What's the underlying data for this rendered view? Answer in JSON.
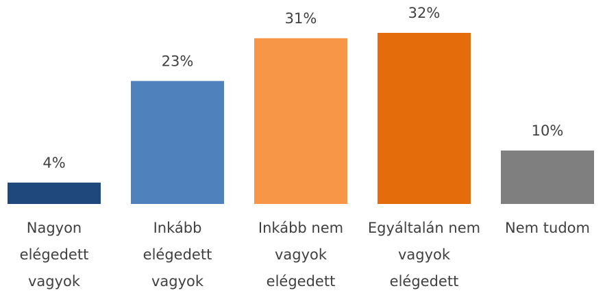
{
  "chart_data": {
    "type": "bar",
    "categories": [
      "Nagyon elégedett vagyok",
      "Inkább elégedett vagyok",
      "Inkább nem vagyok elégedett",
      "Egyáltalán nem vagyok elégedett",
      "Nem tudom"
    ],
    "values": [
      4,
      23,
      31,
      32,
      10
    ],
    "value_labels": [
      "4%",
      "23%",
      "31%",
      "32%",
      "10%"
    ],
    "colors": [
      "#1f497d",
      "#4f81bd",
      "#f79646",
      "#e46c0a",
      "#7f7f7f"
    ]
  }
}
